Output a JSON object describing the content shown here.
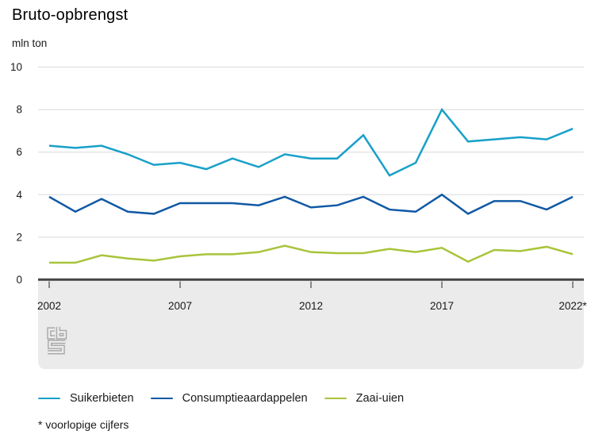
{
  "header": {
    "title": "Bruto-opbrengst",
    "unit": "mln ton"
  },
  "footnote": "* voorlopige cijfers",
  "icons": {
    "logo": "cbs-logo"
  },
  "chart_data": {
    "type": "line",
    "title": "Bruto-opbrengst",
    "ylabel": "mln ton",
    "xlabel": "",
    "ylim": [
      0,
      10
    ],
    "y_ticks": [
      0,
      2,
      4,
      6,
      8,
      10
    ],
    "grid": "horizontal",
    "legend_position": "bottom",
    "x": [
      2002,
      2003,
      2004,
      2005,
      2006,
      2007,
      2008,
      2009,
      2010,
      2011,
      2012,
      2013,
      2014,
      2015,
      2016,
      2017,
      2018,
      2019,
      2020,
      2021,
      2022
    ],
    "x_tick_years": [
      2002,
      2007,
      2012,
      2017,
      2022
    ],
    "x_tick_labels": [
      "2002",
      "2007",
      "2012",
      "2017",
      "2022*"
    ],
    "series": [
      {
        "name": "Suikerbieten",
        "color": "#18a0c9",
        "values": [
          6.3,
          6.2,
          6.3,
          5.9,
          5.4,
          5.5,
          5.2,
          5.7,
          5.3,
          5.9,
          5.7,
          5.7,
          6.8,
          4.9,
          5.5,
          8.0,
          6.5,
          6.6,
          6.7,
          6.6,
          7.1
        ]
      },
      {
        "name": "Consumptieaardappelen",
        "color": "#1159a5",
        "values": [
          3.9,
          3.2,
          3.8,
          3.2,
          3.1,
          3.6,
          3.6,
          3.6,
          3.5,
          3.9,
          3.4,
          3.5,
          3.9,
          3.3,
          3.2,
          4.0,
          3.1,
          3.7,
          3.7,
          3.3,
          3.9
        ]
      },
      {
        "name": "Zaai-uien",
        "color": "#a8c43a",
        "values": [
          0.8,
          0.8,
          1.15,
          1.0,
          0.9,
          1.1,
          1.2,
          1.2,
          1.3,
          1.6,
          1.3,
          1.25,
          1.25,
          1.45,
          1.3,
          1.5,
          0.85,
          1.4,
          1.35,
          1.55,
          1.2
        ]
      }
    ]
  }
}
